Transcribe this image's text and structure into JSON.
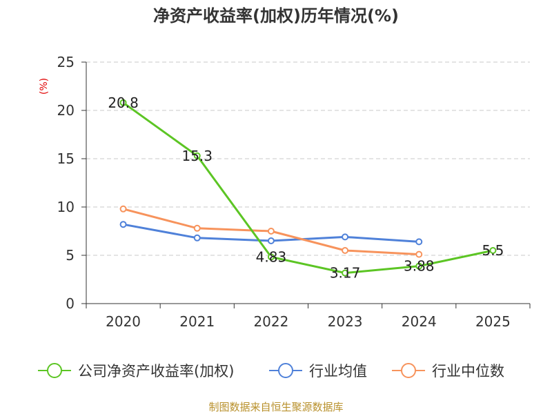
{
  "chart_data": {
    "type": "line",
    "title": "净资产收益率(加权)历年情况(%)",
    "ylabel": "(%)",
    "xlabel": "",
    "categories": [
      "2020",
      "2021",
      "2022",
      "2023",
      "2024",
      "2025"
    ],
    "ylim": [
      0,
      25
    ],
    "yticks": [
      0,
      5,
      10,
      15,
      20,
      25
    ],
    "grid": true,
    "legend_position": "bottom",
    "series": [
      {
        "name": "公司净资产收益率(加权)",
        "color": "#5cc524",
        "values": [
          20.8,
          15.3,
          4.83,
          3.17,
          3.88,
          5.5
        ],
        "labels": [
          "20.8",
          "15.3",
          "4.83",
          "3.17",
          "3.88",
          "5.5"
        ]
      },
      {
        "name": "行业均值",
        "color": "#4f81d9",
        "values": [
          8.2,
          6.8,
          6.5,
          6.9,
          6.4,
          null
        ]
      },
      {
        "name": "行业中位数",
        "color": "#f7935c",
        "values": [
          9.8,
          7.8,
          7.5,
          5.5,
          5.1,
          null
        ]
      }
    ]
  },
  "footer": {
    "source": "制图数据来自恒生聚源数据库"
  }
}
